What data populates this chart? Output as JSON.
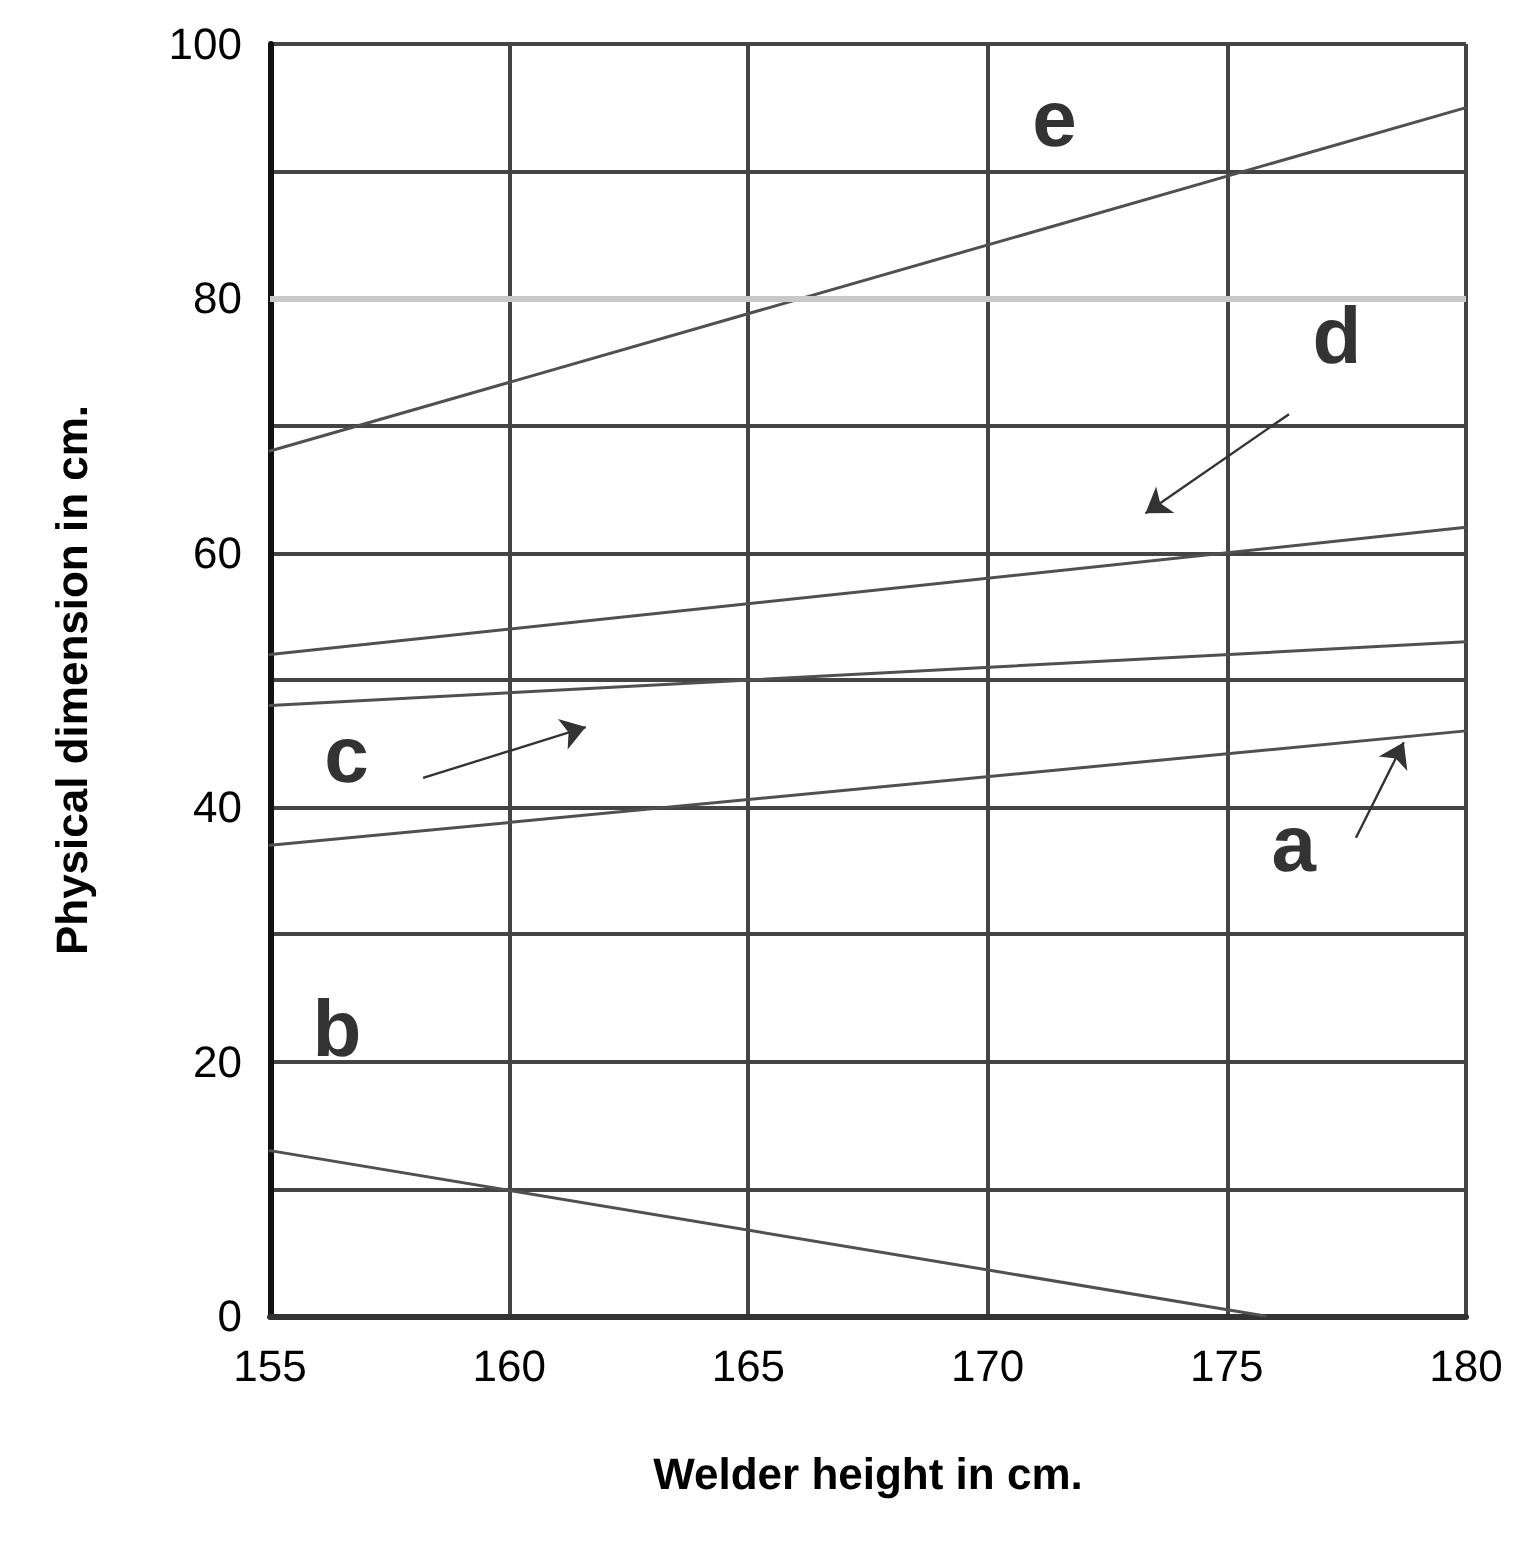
{
  "chart_data": {
    "type": "line",
    "xlabel": "Welder height in cm.",
    "ylabel": "Physical dimension in cm.",
    "xlim": [
      155,
      180
    ],
    "xticks": [
      155,
      160,
      165,
      170,
      175,
      180
    ],
    "ylim": [
      0,
      100
    ],
    "yticks": [
      0,
      {
        "value": 10,
        "label": null
      },
      20,
      {
        "value": 30,
        "label": null
      },
      40,
      {
        "value": 50,
        "label": null
      },
      60,
      {
        "value": 70,
        "label": null
      },
      80,
      {
        "value": 90,
        "label": null
      },
      100
    ],
    "grid": true,
    "legend": false,
    "marker": "none",
    "line_style": "solid",
    "series": [
      {
        "name": "e",
        "color": "#505050",
        "x": [
          155,
          180
        ],
        "values": [
          68,
          95
        ]
      },
      {
        "name": "d",
        "color": "#505050",
        "x": [
          155,
          180
        ],
        "values": [
          52,
          62
        ]
      },
      {
        "name": "c",
        "color": "#505050",
        "x": [
          155,
          180
        ],
        "values": [
          48,
          53
        ]
      },
      {
        "name": "a",
        "color": "#505050",
        "x": [
          155,
          180
        ],
        "values": [
          37,
          46
        ]
      },
      {
        "name": "b",
        "color": "#505050",
        "x": [
          155,
          175.8
        ],
        "values": [
          13,
          0
        ]
      }
    ],
    "ref_lines": [
      {
        "axis": "y",
        "value": 80,
        "label": null,
        "color": "#c8c8c8"
      }
    ]
  }
}
